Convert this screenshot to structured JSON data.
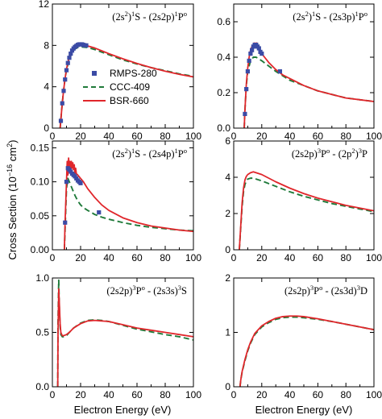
{
  "figure": {
    "ylabel_main": "Cross Section (10",
    "ylabel_exp": "−16",
    "ylabel_unit": " cm",
    "ylabel_sq": "2",
    "ylabel_close": ")",
    "xlabel": "Electron Energy (eV)"
  },
  "chart_data": [
    {
      "type": "line",
      "title_parts": [
        [
          "(2s",
          "",
          ""
        ],
        [
          "2",
          "sup",
          ""
        ],
        [
          ")",
          "",
          ""
        ],
        [
          "1",
          "sup",
          ""
        ],
        [
          "S - (2s2p)",
          "",
          ""
        ],
        [
          "1",
          "sup",
          ""
        ],
        [
          "P",
          "",
          ""
        ],
        [
          "o",
          "sup",
          ""
        ]
      ],
      "xlim": [
        0,
        100
      ],
      "ylim": [
        0,
        12
      ],
      "xticks": [
        0,
        20,
        40,
        60,
        80,
        100
      ],
      "yticks": [
        0,
        4,
        8,
        12
      ],
      "yticklabels": [
        "0",
        "4",
        "8",
        "12"
      ],
      "legend": {
        "placement": "center-left",
        "entries": [
          "RMPS-280",
          "CCC-409",
          "BSR-660"
        ]
      },
      "series": [
        {
          "name": "BSR-660",
          "style": "solid",
          "color": "#e0262b",
          "x": [
            5.5,
            6,
            7,
            8,
            9,
            10,
            11,
            12,
            13,
            14,
            15,
            16,
            17,
            18,
            19,
            20,
            22,
            25,
            30,
            40,
            50,
            60,
            70,
            80,
            90,
            100
          ],
          "y": [
            0,
            0.8,
            2.4,
            3.7,
            4.8,
            5.7,
            6.35,
            6.85,
            7.2,
            7.5,
            7.7,
            7.85,
            7.95,
            8.05,
            8.1,
            8.1,
            8.05,
            7.95,
            7.75,
            7.2,
            6.7,
            6.25,
            5.85,
            5.5,
            5.2,
            4.95
          ]
        },
        {
          "name": "CCC-409",
          "style": "dashed",
          "color": "#1f7a3a",
          "x": [
            5.5,
            6,
            7,
            8,
            9,
            10,
            12,
            14,
            16,
            18,
            20,
            25,
            30,
            40,
            50,
            60,
            70,
            80,
            90,
            100
          ],
          "y": [
            0,
            0.8,
            2.4,
            3.7,
            4.8,
            5.6,
            6.7,
            7.3,
            7.65,
            7.8,
            7.85,
            7.8,
            7.6,
            7.1,
            6.6,
            6.2,
            5.85,
            5.55,
            5.25,
            5.0
          ]
        },
        {
          "name": "RMPS-280",
          "style": "markers",
          "color": "#3b4ba5",
          "x": [
            6,
            7,
            8,
            9,
            10,
            11,
            12,
            13,
            14,
            15,
            16,
            17,
            18,
            19,
            20,
            21,
            22,
            23,
            24
          ],
          "y": [
            0.7,
            2.4,
            3.6,
            4.7,
            5.6,
            6.3,
            6.8,
            7.2,
            7.5,
            7.7,
            7.85,
            7.95,
            8.05,
            8.1,
            8.1,
            8.1,
            8.05,
            8.0,
            8.0
          ]
        }
      ]
    },
    {
      "type": "line",
      "title_parts": [
        [
          "(2s",
          "",
          ""
        ],
        [
          "2",
          "sup",
          ""
        ],
        [
          ")",
          "",
          ""
        ],
        [
          "1",
          "sup",
          ""
        ],
        [
          "S - (2s3p)",
          "",
          ""
        ],
        [
          "1",
          "sup",
          ""
        ],
        [
          "P",
          "",
          ""
        ],
        [
          "o",
          "sup",
          ""
        ]
      ],
      "xlim": [
        0,
        100
      ],
      "ylim": [
        0,
        0.7
      ],
      "xticks": [
        0,
        20,
        40,
        60,
        80,
        100
      ],
      "yticks": [
        0,
        0.2,
        0.4,
        0.6
      ],
      "yticklabels": [
        "0.0",
        "0.2",
        "0.4",
        "0.6"
      ],
      "series": [
        {
          "name": "BSR-660",
          "style": "solid",
          "color": "#e0262b",
          "x": [
            7.5,
            8,
            9,
            10,
            11,
            12,
            13,
            14,
            14.5,
            15,
            15.5,
            16,
            16.5,
            17,
            17.5,
            18,
            19,
            20,
            22,
            25,
            30,
            35,
            40,
            50,
            60,
            70,
            80,
            90,
            100
          ],
          "y": [
            0,
            0.1,
            0.25,
            0.34,
            0.4,
            0.44,
            0.46,
            0.47,
            0.48,
            0.47,
            0.48,
            0.46,
            0.48,
            0.46,
            0.45,
            0.44,
            0.43,
            0.42,
            0.4,
            0.37,
            0.33,
            0.3,
            0.28,
            0.24,
            0.21,
            0.19,
            0.17,
            0.16,
            0.15
          ]
        },
        {
          "name": "CCC-409",
          "style": "dashed",
          "color": "#1f7a3a",
          "x": [
            7.5,
            8,
            9,
            10,
            12,
            14,
            16,
            18,
            20,
            25,
            30,
            40,
            50,
            60,
            70,
            80,
            90,
            100
          ],
          "y": [
            0,
            0.1,
            0.24,
            0.32,
            0.38,
            0.4,
            0.4,
            0.39,
            0.38,
            0.35,
            0.32,
            0.27,
            0.24,
            0.21,
            0.19,
            0.17,
            0.16,
            0.15
          ]
        },
        {
          "name": "RMPS-280",
          "style": "markers",
          "color": "#3b4ba5",
          "x": [
            8,
            9,
            10,
            11,
            12,
            13,
            14,
            15,
            16,
            17,
            18,
            19,
            20,
            33
          ],
          "y": [
            0.08,
            0.22,
            0.32,
            0.38,
            0.42,
            0.44,
            0.46,
            0.47,
            0.47,
            0.46,
            0.45,
            0.43,
            0.42,
            0.32
          ]
        }
      ]
    },
    {
      "type": "line",
      "title_parts": [
        [
          "(2s",
          "",
          ""
        ],
        [
          "2",
          "sup",
          ""
        ],
        [
          ")",
          "",
          ""
        ],
        [
          "1",
          "sup",
          ""
        ],
        [
          "S - (2s4p)",
          "",
          ""
        ],
        [
          "1",
          "sup",
          ""
        ],
        [
          "P",
          "",
          ""
        ],
        [
          "o",
          "sup",
          ""
        ]
      ],
      "xlim": [
        0,
        100
      ],
      "ylim": [
        0,
        0.16
      ],
      "xticks": [
        0,
        20,
        40,
        60,
        80,
        100
      ],
      "yticks": [
        0,
        0.05,
        0.1,
        0.15
      ],
      "yticklabels": [
        "0.00",
        "0.05",
        "0.10",
        "0.15"
      ],
      "series": [
        {
          "name": "BSR-660",
          "style": "solid",
          "color": "#e0262b",
          "x": [
            8.5,
            9,
            10,
            10.5,
            11,
            11.5,
            12,
            12.5,
            13,
            13.5,
            14,
            14.5,
            15,
            15.5,
            16,
            16.5,
            17,
            18,
            20,
            22,
            25,
            30,
            35,
            40,
            50,
            60,
            70,
            80,
            90,
            100
          ],
          "y": [
            0,
            0.04,
            0.1,
            0.13,
            0.11,
            0.135,
            0.12,
            0.13,
            0.115,
            0.13,
            0.12,
            0.128,
            0.118,
            0.125,
            0.112,
            0.12,
            0.112,
            0.11,
            0.105,
            0.1,
            0.09,
            0.077,
            0.066,
            0.058,
            0.047,
            0.04,
            0.035,
            0.032,
            0.029,
            0.027
          ]
        },
        {
          "name": "CCC-409",
          "style": "dashed",
          "color": "#1f7a3a",
          "x": [
            8.5,
            9,
            10,
            11,
            12,
            14,
            16,
            18,
            20,
            22,
            25,
            30,
            35,
            40,
            50,
            60,
            70,
            80,
            90,
            100
          ],
          "y": [
            0,
            0.03,
            0.09,
            0.105,
            0.1,
            0.09,
            0.08,
            0.072,
            0.066,
            0.062,
            0.058,
            0.052,
            0.048,
            0.045,
            0.04,
            0.036,
            0.033,
            0.031,
            0.029,
            0.028
          ]
        },
        {
          "name": "RMPS-280",
          "style": "markers",
          "color": "#3b4ba5",
          "x": [
            9,
            10,
            11,
            12,
            13,
            14,
            15,
            16,
            17,
            18,
            19,
            20,
            33
          ],
          "y": [
            0.04,
            0.1,
            0.12,
            0.118,
            0.115,
            0.112,
            0.11,
            0.108,
            0.105,
            0.102,
            0.1,
            0.098,
            0.055
          ]
        }
      ]
    },
    {
      "type": "line",
      "title_parts": [
        [
          "(2s2p)",
          "",
          ""
        ],
        [
          "3",
          "sup",
          ""
        ],
        [
          "P",
          "",
          ""
        ],
        [
          "o",
          "sup",
          ""
        ],
        [
          " - (2p",
          "",
          ""
        ],
        [
          "2",
          "sup",
          ""
        ],
        [
          ")",
          "",
          ""
        ],
        [
          "3",
          "sup",
          ""
        ],
        [
          "P",
          "",
          ""
        ]
      ],
      "xlim": [
        0,
        100
      ],
      "ylim": [
        0,
        6
      ],
      "xticks": [
        0,
        20,
        40,
        60,
        80,
        100
      ],
      "yticks": [
        0,
        2,
        4,
        6
      ],
      "yticklabels": [
        "0",
        "2",
        "4",
        "6"
      ],
      "series": [
        {
          "name": "BSR-660",
          "style": "solid",
          "color": "#e0262b",
          "x": [
            4,
            5,
            6,
            7,
            8,
            9,
            10,
            12,
            14,
            16,
            20,
            25,
            30,
            40,
            50,
            60,
            70,
            80,
            90,
            100
          ],
          "y": [
            0,
            1.3,
            2.6,
            3.4,
            3.85,
            4.05,
            4.15,
            4.25,
            4.3,
            4.25,
            4.15,
            3.95,
            3.75,
            3.4,
            3.1,
            2.85,
            2.65,
            2.45,
            2.3,
            2.15
          ]
        },
        {
          "name": "CCC-409",
          "style": "dashed",
          "color": "#1f7a3a",
          "x": [
            4,
            5,
            6,
            7,
            8,
            9,
            10,
            12,
            14,
            16,
            20,
            25,
            30,
            40,
            50,
            60,
            70,
            80,
            90,
            100
          ],
          "y": [
            0,
            1.2,
            2.4,
            3.2,
            3.6,
            3.8,
            3.9,
            3.95,
            3.95,
            3.9,
            3.8,
            3.65,
            3.5,
            3.2,
            2.95,
            2.75,
            2.55,
            2.4,
            2.25,
            2.1
          ]
        }
      ]
    },
    {
      "type": "line",
      "title_parts": [
        [
          "(2s2p)",
          "",
          ""
        ],
        [
          "3",
          "sup",
          ""
        ],
        [
          "P",
          "",
          ""
        ],
        [
          "o",
          "sup",
          ""
        ],
        [
          " - (2s3s)",
          "",
          ""
        ],
        [
          "3",
          "sup",
          ""
        ],
        [
          "S",
          "",
          ""
        ]
      ],
      "xlim": [
        0,
        100
      ],
      "ylim": [
        0,
        1.0
      ],
      "xticks": [
        0,
        20,
        40,
        60,
        80,
        100
      ],
      "yticks": [
        0,
        0.5,
        1.0
      ],
      "yticklabels": [
        "0.0",
        "0.5",
        "1.0"
      ],
      "series": [
        {
          "name": "BSR-660",
          "style": "solid",
          "color": "#e0262b",
          "x": [
            3.8,
            4,
            4.5,
            5,
            5.5,
            6,
            7,
            8,
            10,
            12,
            15,
            20,
            25,
            30,
            35,
            40,
            50,
            60,
            70,
            80,
            90,
            100
          ],
          "y": [
            0,
            0.5,
            0.9,
            0.75,
            0.58,
            0.5,
            0.47,
            0.47,
            0.48,
            0.5,
            0.54,
            0.58,
            0.605,
            0.61,
            0.605,
            0.6,
            0.57,
            0.54,
            0.52,
            0.5,
            0.48,
            0.46
          ]
        },
        {
          "name": "CCC-409",
          "style": "dashed",
          "color": "#1f7a3a",
          "x": [
            3.8,
            4,
            4.5,
            5,
            5.5,
            6,
            7,
            8,
            10,
            12,
            15,
            20,
            25,
            30,
            35,
            40,
            50,
            60,
            70,
            80,
            90,
            100
          ],
          "y": [
            0,
            0.6,
            0.98,
            0.7,
            0.55,
            0.48,
            0.46,
            0.46,
            0.47,
            0.5,
            0.54,
            0.585,
            0.61,
            0.615,
            0.61,
            0.6,
            0.565,
            0.53,
            0.505,
            0.48,
            0.46,
            0.43
          ]
        }
      ]
    },
    {
      "type": "line",
      "title_parts": [
        [
          "(2s2p)",
          "",
          ""
        ],
        [
          "3",
          "sup",
          ""
        ],
        [
          "P",
          "",
          ""
        ],
        [
          "o",
          "sup",
          ""
        ],
        [
          " - (2s3d)",
          "",
          ""
        ],
        [
          "3",
          "sup",
          ""
        ],
        [
          "D",
          "",
          ""
        ]
      ],
      "xlim": [
        0,
        100
      ],
      "ylim": [
        0,
        2
      ],
      "xticks": [
        0,
        20,
        40,
        60,
        80,
        100
      ],
      "yticks": [
        0,
        1,
        2
      ],
      "yticklabels": [
        "0",
        "1",
        "2"
      ],
      "series": [
        {
          "name": "BSR-660",
          "style": "solid",
          "color": "#e0262b",
          "x": [
            4.5,
            5,
            6,
            8,
            10,
            12,
            15,
            20,
            25,
            30,
            35,
            40,
            45,
            50,
            60,
            70,
            80,
            90,
            100
          ],
          "y": [
            0,
            0.12,
            0.28,
            0.5,
            0.68,
            0.82,
            0.98,
            1.12,
            1.2,
            1.26,
            1.29,
            1.3,
            1.3,
            1.29,
            1.25,
            1.2,
            1.15,
            1.1,
            1.05
          ]
        },
        {
          "name": "CCC-409",
          "style": "dashed",
          "color": "#1f7a3a",
          "x": [
            4.5,
            5,
            6,
            8,
            10,
            12,
            15,
            20,
            25,
            30,
            35,
            40,
            45,
            50,
            60,
            70,
            80,
            90,
            100
          ],
          "y": [
            0,
            0.12,
            0.27,
            0.48,
            0.66,
            0.8,
            0.96,
            1.1,
            1.18,
            1.24,
            1.27,
            1.28,
            1.28,
            1.27,
            1.24,
            1.2,
            1.15,
            1.1,
            1.05
          ]
        }
      ]
    }
  ]
}
